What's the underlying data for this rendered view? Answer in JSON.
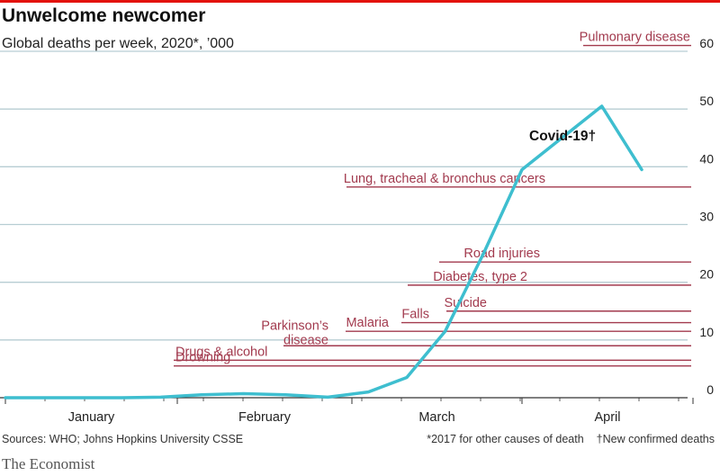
{
  "header": {
    "title": "Unwelcome newcomer",
    "subtitle": "Global deaths per week, 2020*, ’000"
  },
  "footer": {
    "source": "Sources: WHO; Johns Hopkins University CSSE",
    "note1": "*2017 for other causes of death",
    "note2": "†New confirmed deaths",
    "brand": "The Economist"
  },
  "colors": {
    "covid_line": "#3ebecf",
    "reference_lines": "#a23a4e",
    "gridline": "#b7cdd3",
    "title_bar": "#e3120b"
  },
  "chart_data": {
    "type": "line",
    "title": "Unwelcome newcomer",
    "subtitle": "Global deaths per week, 2020*, ’000",
    "xlabel": "",
    "ylabel": "",
    "x_ticks": [
      "January",
      "February",
      "March",
      "April"
    ],
    "y_ticks": [
      0,
      10,
      20,
      30,
      40,
      50,
      60
    ],
    "ylim": [
      0,
      60
    ],
    "grid": true,
    "series": [
      {
        "name": "Covid-19†",
        "x": [
          "Jan 1",
          "Jan 8",
          "Jan 15",
          "Jan 22",
          "Jan 29",
          "Feb 5",
          "Feb 12",
          "Feb 19",
          "Feb 26",
          "Mar 4",
          "Mar 11",
          "Mar 18",
          "Mar 25",
          "Apr 1",
          "Apr 8",
          "Apr 15",
          "Apr 22"
        ],
        "values": [
          0,
          0,
          0,
          0,
          0.1,
          0.5,
          0.7,
          0.5,
          0.1,
          1,
          3.5,
          11.5,
          25,
          39.5,
          45,
          50.5,
          39.5
        ]
      }
    ],
    "reference_lines": [
      {
        "label": "Pulmonary disease",
        "value": 61
      },
      {
        "label": "Lung, tracheal & bronchus cancers",
        "value": 36.5
      },
      {
        "label": "Road injuries",
        "value": 23.5
      },
      {
        "label": "Diabetes, type 2",
        "value": 19.5
      },
      {
        "label": "Suicide",
        "value": 15
      },
      {
        "label": "Falls",
        "value": 13
      },
      {
        "label": "Malaria",
        "value": 11.5
      },
      {
        "label": "Parkinson’s disease",
        "value": 9
      },
      {
        "label": "Drugs & alcohol",
        "value": 6.5
      },
      {
        "label": "Drowning",
        "value": 5.5
      }
    ]
  }
}
